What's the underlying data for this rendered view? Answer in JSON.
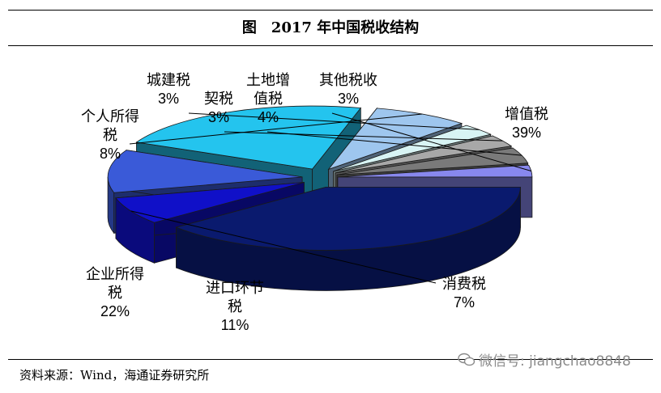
{
  "title": "图　2017 年中国税收结构",
  "source": "资料来源：Wind，海通证券研究所",
  "watermark": "微信号: jiangchao8848",
  "chart_data": {
    "type": "pie",
    "title": "图　2017 年中国税收结构",
    "unit": "%",
    "slices": [
      {
        "name": "增值税",
        "value": 39,
        "label": "39%",
        "color": "#0a1a6e"
      },
      {
        "name": "消费税",
        "value": 7,
        "label": "7%",
        "color": "#1010c8"
      },
      {
        "name": "进口环节税",
        "value": 11,
        "label": "11%",
        "color": "#3a5ad8"
      },
      {
        "name": "企业所得税",
        "value": 22,
        "label": "22%",
        "color": "#24c4ee"
      },
      {
        "name": "个人所得税",
        "value": 8,
        "label": "8%",
        "color": "#9ec6ee"
      },
      {
        "name": "城建税",
        "value": 3,
        "label": "3%",
        "color": "#d8f4f4"
      },
      {
        "name": "契税",
        "value": 3,
        "label": "3%",
        "color": "#a8a8a8"
      },
      {
        "name": "土地增值税",
        "value": 4,
        "label": "4%",
        "color": "#7a7a7a"
      },
      {
        "name": "其他税收",
        "value": 3,
        "label": "3%",
        "color": "#8888ee"
      }
    ],
    "labels": {
      "vat": {
        "name": "增值税",
        "pct": "39%"
      },
      "consumption": {
        "name": "消费税",
        "pct": "7%"
      },
      "import": {
        "line1": "进口环节",
        "line2": "税",
        "pct": "11%"
      },
      "corporate": {
        "line1": "企业所得",
        "line2": "税",
        "pct": "22%"
      },
      "personal": {
        "line1": "个人所得",
        "line2": "税",
        "pct": "8%"
      },
      "urban": {
        "name": "城建税",
        "pct": "3%"
      },
      "deed": {
        "name": "契税",
        "pct": "3%"
      },
      "land": {
        "line1": "土地增",
        "line2": "值税",
        "pct": "4%"
      },
      "other": {
        "name": "其他税收",
        "pct": "3%"
      }
    }
  }
}
